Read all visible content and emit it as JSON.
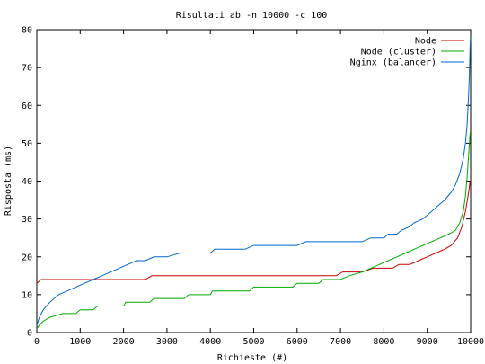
{
  "chart_data": {
    "type": "line",
    "title": "Risultati ab -n 10000 -c 100",
    "xlabel": "Richieste (#)",
    "ylabel": "Risposta (ms)",
    "xlim": [
      0,
      10000
    ],
    "ylim": [
      0,
      80
    ],
    "xticks": [
      0,
      1000,
      2000,
      3000,
      4000,
      5000,
      6000,
      7000,
      8000,
      9000,
      10000
    ],
    "yticks": [
      0,
      10,
      20,
      30,
      40,
      50,
      60,
      70,
      80
    ],
    "grid": false,
    "legend_position": "top-right",
    "series": [
      {
        "name": "Node",
        "color": "#cc0000",
        "points": [
          [
            0,
            13
          ],
          [
            100,
            14
          ],
          [
            1000,
            14
          ],
          [
            2000,
            14
          ],
          [
            2500,
            14
          ],
          [
            2650,
            15
          ],
          [
            3000,
            15
          ],
          [
            4000,
            15
          ],
          [
            5000,
            15
          ],
          [
            6000,
            15
          ],
          [
            6900,
            15
          ],
          [
            7050,
            16
          ],
          [
            7500,
            16
          ],
          [
            7750,
            17
          ],
          [
            8000,
            17
          ],
          [
            8200,
            17
          ],
          [
            8350,
            18
          ],
          [
            8600,
            18
          ],
          [
            8800,
            19
          ],
          [
            9000,
            20
          ],
          [
            9200,
            21
          ],
          [
            9400,
            22
          ],
          [
            9550,
            23
          ],
          [
            9700,
            25
          ],
          [
            9800,
            28
          ],
          [
            9880,
            32
          ],
          [
            9940,
            36
          ],
          [
            9990,
            40
          ]
        ]
      },
      {
        "name": "Node (cluster)",
        "color": "#00aa00",
        "points": [
          [
            0,
            1
          ],
          [
            60,
            2
          ],
          [
            150,
            3
          ],
          [
            300,
            4
          ],
          [
            600,
            5
          ],
          [
            900,
            5
          ],
          [
            1000,
            6
          ],
          [
            1300,
            6
          ],
          [
            1400,
            7
          ],
          [
            2000,
            7
          ],
          [
            2050,
            8
          ],
          [
            2600,
            8
          ],
          [
            2700,
            9
          ],
          [
            3400,
            9
          ],
          [
            3500,
            10
          ],
          [
            4000,
            10
          ],
          [
            4050,
            11
          ],
          [
            4900,
            11
          ],
          [
            5000,
            12
          ],
          [
            5900,
            12
          ],
          [
            6000,
            13
          ],
          [
            6500,
            13
          ],
          [
            6600,
            14
          ],
          [
            7000,
            14
          ],
          [
            7200,
            15
          ],
          [
            7500,
            16
          ],
          [
            7700,
            17
          ],
          [
            7900,
            18
          ],
          [
            8100,
            19
          ],
          [
            8300,
            20
          ],
          [
            8500,
            21
          ],
          [
            8700,
            22
          ],
          [
            8900,
            23
          ],
          [
            9100,
            24
          ],
          [
            9300,
            25
          ],
          [
            9500,
            26
          ],
          [
            9650,
            27
          ],
          [
            9750,
            29
          ],
          [
            9830,
            32
          ],
          [
            9880,
            36
          ],
          [
            9920,
            41
          ],
          [
            9960,
            48
          ],
          [
            9990,
            53
          ]
        ]
      },
      {
        "name": "Nginx (balancer)",
        "color": "#0066cc",
        "points": [
          [
            0,
            2
          ],
          [
            60,
            4
          ],
          [
            150,
            6
          ],
          [
            300,
            8
          ],
          [
            500,
            10
          ],
          [
            700,
            11
          ],
          [
            900,
            12
          ],
          [
            1100,
            13
          ],
          [
            1300,
            14
          ],
          [
            1500,
            15
          ],
          [
            1700,
            16
          ],
          [
            1900,
            17
          ],
          [
            2100,
            18
          ],
          [
            2300,
            19
          ],
          [
            2500,
            19
          ],
          [
            2700,
            20
          ],
          [
            2900,
            20
          ],
          [
            3000,
            20
          ],
          [
            3300,
            21
          ],
          [
            3500,
            21
          ],
          [
            4000,
            21
          ],
          [
            4100,
            22
          ],
          [
            4800,
            22
          ],
          [
            5000,
            23
          ],
          [
            5500,
            23
          ],
          [
            6000,
            23
          ],
          [
            6200,
            24
          ],
          [
            7000,
            24
          ],
          [
            7500,
            24
          ],
          [
            7700,
            25
          ],
          [
            8000,
            25
          ],
          [
            8100,
            26
          ],
          [
            8300,
            26
          ],
          [
            8400,
            27
          ],
          [
            8600,
            28
          ],
          [
            8700,
            29
          ],
          [
            8900,
            30
          ],
          [
            9000,
            31
          ],
          [
            9100,
            32
          ],
          [
            9300,
            34
          ],
          [
            9400,
            35
          ],
          [
            9550,
            37
          ],
          [
            9650,
            39
          ],
          [
            9750,
            42
          ],
          [
            9830,
            46
          ],
          [
            9880,
            50
          ],
          [
            9920,
            55
          ],
          [
            9950,
            62
          ],
          [
            9970,
            68
          ],
          [
            9985,
            75
          ],
          [
            9995,
            78
          ]
        ]
      }
    ]
  }
}
